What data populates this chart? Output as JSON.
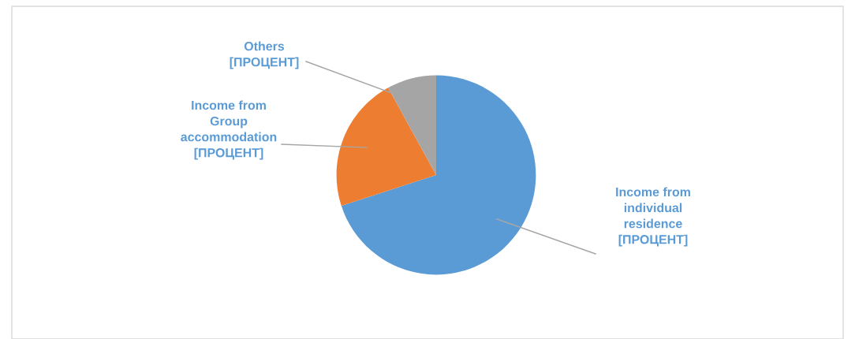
{
  "chart_data": {
    "type": "pie",
    "categories": [
      "Income from\nindividual\nresidence",
      "Income from\nGroup\naccommodation",
      "Others"
    ],
    "values": [
      70,
      22,
      8
    ],
    "colors": [
      "#5b9bd5",
      "#ed7d31",
      "#a5a5a5"
    ],
    "value_labels": [
      "[ПРОЦЕНТ]",
      "[ПРОЦЕНТ]",
      "[ПРОЦЕНТ]"
    ]
  }
}
